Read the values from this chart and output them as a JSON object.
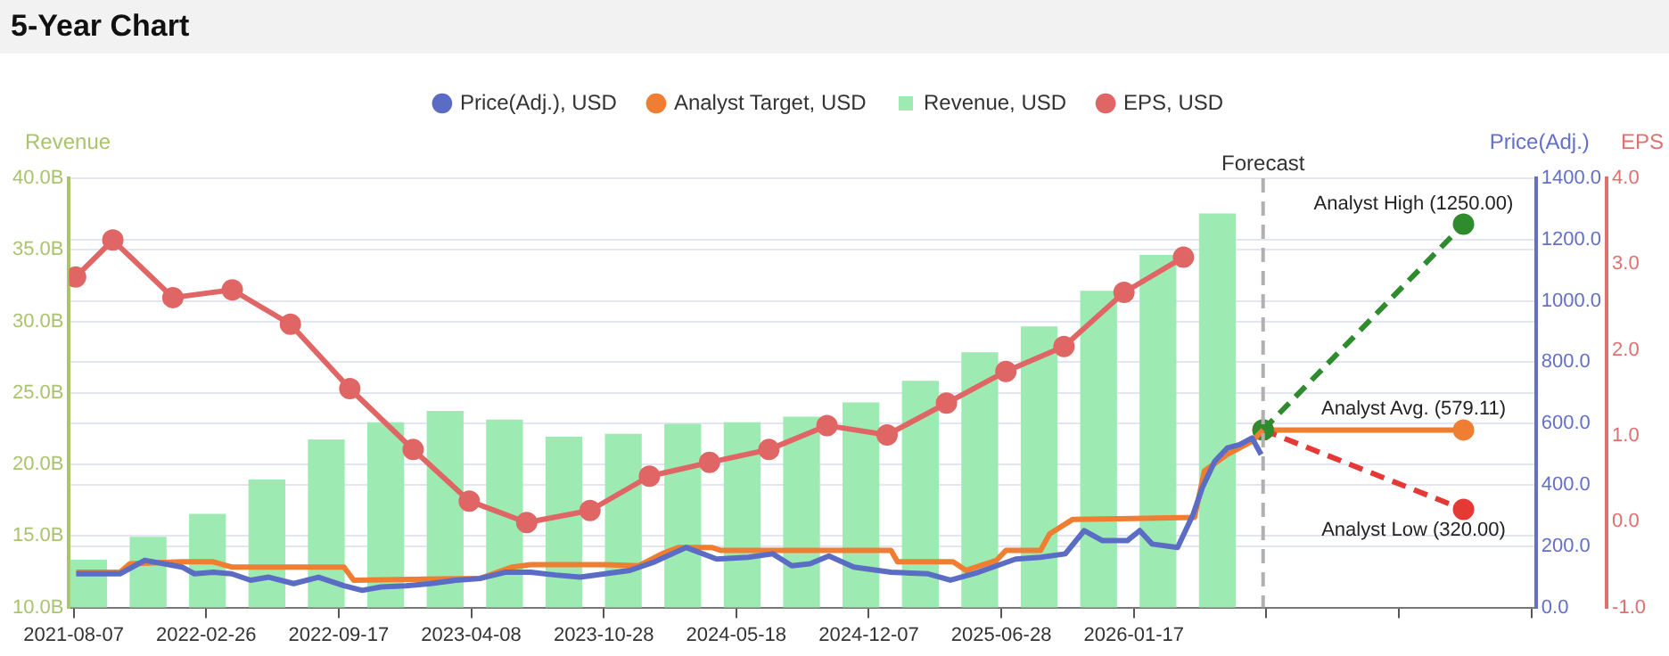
{
  "chart_data": {
    "type": "line",
    "title": "5-Year Chart",
    "ylabel": "Revenue",
    "y2label": "Price(Adj.)",
    "y3label": "EPS",
    "xlim": [
      "2021-07-31",
      "2027-09-25"
    ],
    "xticks": [
      "2021-08-07",
      "2022-02-26",
      "2022-09-17",
      "2023-04-08",
      "2023-10-28",
      "2024-05-18",
      "2024-12-07",
      "2025-06-28",
      "2026-01-17",
      {
        "value": "2026-08-08",
        "label": null
      },
      {
        "value": "2027-02-27",
        "label": null
      },
      {
        "value": "2027-09-18",
        "label": null
      }
    ],
    "ylim": [
      10,
      40
    ],
    "yticks": [
      {
        "value": 10,
        "label": "10.0B"
      },
      {
        "value": 15,
        "label": "15.0B"
      },
      {
        "value": 20,
        "label": "20.0B"
      },
      {
        "value": 25,
        "label": "25.0B"
      },
      {
        "value": 30,
        "label": "30.0B"
      },
      {
        "value": 35,
        "label": "35.0B"
      },
      {
        "value": 40,
        "label": "40.0B"
      }
    ],
    "y2lim": [
      0,
      1400
    ],
    "y2ticks": [
      {
        "value": 0,
        "label": "0.0"
      },
      {
        "value": 200,
        "label": "200.0"
      },
      {
        "value": 400,
        "label": "400.0"
      },
      {
        "value": 600,
        "label": "600.0"
      },
      {
        "value": 800,
        "label": "800.0"
      },
      {
        "value": 1000,
        "label": "1000.0"
      },
      {
        "value": 1200,
        "label": "1200.0"
      },
      {
        "value": 1400,
        "label": "1400.0"
      }
    ],
    "y3lim": [
      -1,
      4
    ],
    "y3ticks": [
      {
        "value": -1,
        "label": "-1.0"
      },
      {
        "value": 0,
        "label": "0.0"
      },
      {
        "value": 1,
        "label": "1.0"
      },
      {
        "value": 2,
        "label": "2.0"
      },
      {
        "value": 3,
        "label": "3.0"
      },
      {
        "value": 4,
        "label": "4.0"
      }
    ],
    "grid": "y",
    "legend": "top",
    "marker": "none",
    "line_style": "solid",
    "series": [
      {
        "name": "Price(Adj.), USD",
        "axis": "y2",
        "color": "#5a6cc4",
        "x": [
          "2021-08-11",
          "2021-10-17",
          "2021-11-24",
          "2022-01-20",
          "2022-02-08",
          "2022-03-09",
          "2022-04-06",
          "2022-05-05",
          "2022-06-02",
          "2022-07-10",
          "2022-08-17",
          "2022-09-25",
          "2022-10-23",
          "2022-11-21",
          "2022-12-29",
          "2023-02-05",
          "2023-03-15",
          "2023-04-22",
          "2023-05-30",
          "2023-07-08",
          "2023-08-15",
          "2023-09-22",
          "2023-10-30",
          "2023-12-07",
          "2024-01-14",
          "2024-03-02",
          "2024-04-18",
          "2024-06-05",
          "2024-07-13",
          "2024-08-11",
          "2024-09-08",
          "2024-10-07",
          "2024-11-14",
          "2025-01-10",
          "2025-03-08",
          "2025-04-11",
          "2025-05-24",
          "2025-07-20",
          "2025-08-27",
          "2025-10-04",
          "2025-11-02",
          "2025-11-30",
          "2026-01-07",
          "2026-01-26",
          "2026-02-14",
          "2026-03-25",
          "2026-04-18",
          "2026-05-02",
          "2026-05-21",
          "2026-06-09",
          "2026-06-28",
          "2026-07-17",
          "2026-07-31"
        ],
        "values": [
          110,
          110,
          154,
          132,
          110,
          115,
          110,
          89,
          99,
          78,
          99,
          71,
          56,
          67,
          71,
          78,
          89,
          95,
          115,
          115,
          106,
          99,
          110,
          121,
          149,
          196,
          158,
          164,
          175,
          136,
          143,
          168,
          132,
          115,
          110,
          89,
          115,
          158,
          164,
          175,
          251,
          218,
          218,
          251,
          207,
          196,
          305,
          391,
          477,
          520,
          531,
          553,
          499
        ]
      },
      {
        "name": "Analyst Target, USD",
        "axis": "y2",
        "color": "#ef7d32",
        "x": [
          "2021-08-11",
          "2021-10-17",
          "2021-11-01",
          "2022-01-20",
          "2022-03-09",
          "2022-04-06",
          "2022-09-25",
          "2022-10-10",
          "2023-04-22",
          "2023-06-10",
          "2023-07-08",
          "2023-10-30",
          "2023-12-20",
          "2024-01-25",
          "2024-02-20",
          "2024-04-10",
          "2024-04-25",
          "2025-01-10",
          "2025-01-20",
          "2025-04-15",
          "2025-05-05",
          "2025-06-20",
          "2025-07-05",
          "2025-08-27",
          "2025-09-10",
          "2025-10-15",
          "2026-04-20",
          "2026-05-05",
          "2026-06-09",
          "2026-07-17",
          "2026-08-03"
        ],
        "values": [
          115,
          115,
          143,
          149,
          149,
          132,
          132,
          89,
          95,
          132,
          140,
          140,
          136,
          175,
          196,
          196,
          186,
          186,
          149,
          149,
          121,
          153,
          186,
          186,
          240,
          287,
          294,
          445,
          499,
          542,
          579.11
        ]
      },
      {
        "name": "Revenue, USD",
        "type": "bar",
        "color": "#9debb2",
        "x": [
          "2021-08-30",
          "2021-11-29",
          "2022-02-28",
          "2022-05-30",
          "2022-08-29",
          "2022-11-28",
          "2023-02-27",
          "2023-05-29",
          "2023-08-28",
          "2023-11-27",
          "2024-02-26",
          "2024-05-27",
          "2024-08-26",
          "2024-11-25",
          "2025-02-24",
          "2025-05-26",
          "2025-08-25",
          "2025-11-24",
          "2026-02-23",
          "2026-05-25"
        ],
        "values": [
          13.3,
          14.9,
          16.5,
          18.9,
          21.7,
          22.9,
          23.7,
          23.1,
          21.9,
          22.1,
          22.8,
          22.9,
          23.3,
          24.3,
          25.8,
          27.8,
          29.6,
          32.1,
          34.6,
          37.5
        ]
      },
      {
        "name": "EPS, USD",
        "type": "line",
        "axis": "y3",
        "color": "#e06666",
        "marker": "circle",
        "x": [
          "2021-08-10",
          "2021-10-06",
          "2022-01-06",
          "2022-04-07",
          "2022-07-05",
          "2022-10-04",
          "2023-01-09",
          "2023-04-05",
          "2023-07-02",
          "2023-10-07",
          "2024-01-06",
          "2024-04-07",
          "2024-07-07",
          "2024-10-04",
          "2025-01-04",
          "2025-04-05",
          "2025-07-05",
          "2025-10-02",
          "2026-01-02",
          "2026-04-03"
        ],
        "values": [
          2.85,
          3.28,
          2.61,
          2.7,
          2.3,
          1.55,
          0.84,
          0.24,
          -0.01,
          0.13,
          0.53,
          0.69,
          0.84,
          1.12,
          1.01,
          1.38,
          1.75,
          2.04,
          2.67,
          3.08
        ]
      },
      {
        "type": "line",
        "axis": "y2",
        "color": "#2e8b2e",
        "marker": "circle",
        "line_style": "dashed",
        "x": [
          "2026-08-03",
          "2027-06-06"
        ],
        "values": [
          579.11,
          1250
        ]
      },
      {
        "type": "line",
        "axis": "y2",
        "color": "#e53935",
        "marker": "circle",
        "line_style": "dashed",
        "x": [
          "2026-08-03",
          "2027-06-06"
        ],
        "values": [
          579.11,
          320
        ]
      },
      {
        "type": "line",
        "axis": "y2",
        "color": "#ef7d32",
        "marker": "circle",
        "x": [
          "2026-08-03",
          "2027-06-06"
        ],
        "values": [
          579.11,
          579.11
        ]
      }
    ],
    "ref_lines": [
      {
        "axis": "x",
        "value": "2026-08-03",
        "label": "Forecast",
        "color": "#b0b0b0",
        "line_style": "dashed"
      }
    ],
    "annotations": [
      "Analyst High (1250.00)",
      "Analyst Avg. (579.11)",
      "Analyst Low (320.00)"
    ]
  }
}
